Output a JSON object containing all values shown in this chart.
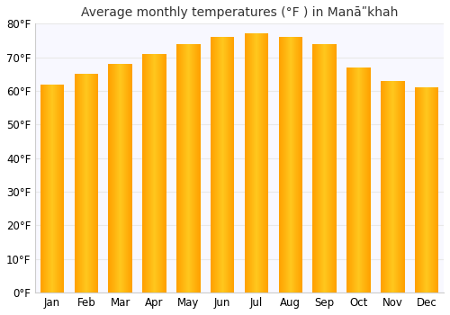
{
  "title": "Average monthly temperatures (°F ) in Manāʺkhah",
  "months": [
    "Jan",
    "Feb",
    "Mar",
    "Apr",
    "May",
    "Jun",
    "Jul",
    "Aug",
    "Sep",
    "Oct",
    "Nov",
    "Dec"
  ],
  "values": [
    62,
    65,
    68,
    71,
    74,
    76,
    77,
    76,
    74,
    67,
    63,
    61
  ],
  "ylim": [
    0,
    80
  ],
  "yticks": [
    0,
    10,
    20,
    30,
    40,
    50,
    60,
    70,
    80
  ],
  "bar_color_main": "#FFA500",
  "bar_color_light": "#FFD050",
  "background_color": "#ffffff",
  "plot_bg_color": "#f8f8ff",
  "grid_color": "#e8e8e8",
  "title_fontsize": 10,
  "tick_fontsize": 8.5
}
